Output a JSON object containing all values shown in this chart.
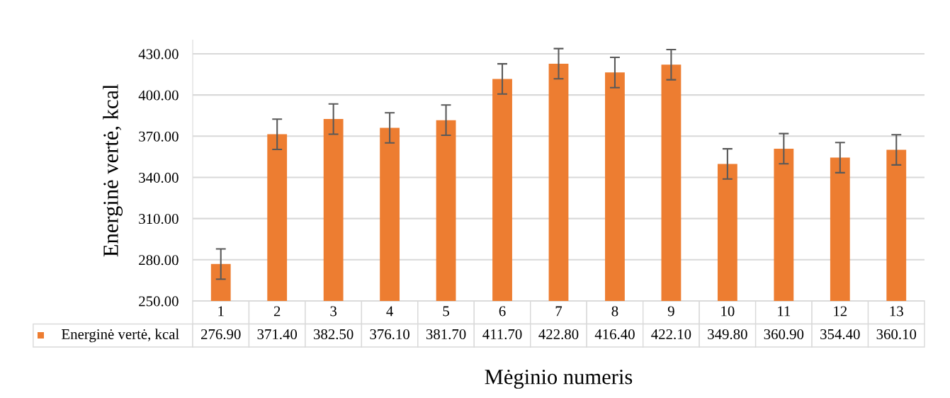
{
  "chart_data": {
    "type": "bar",
    "xlabel": "Mėginio numeris",
    "ylabel": "Energinė vertė, kcal",
    "categories": [
      "1",
      "2",
      "3",
      "4",
      "5",
      "6",
      "7",
      "8",
      "9",
      "10",
      "11",
      "12",
      "13"
    ],
    "series": [
      {
        "name": "Energinė vertė, kcal",
        "color": "#ed7d31",
        "values": [
          276.9,
          371.4,
          382.5,
          376.1,
          381.7,
          411.7,
          422.8,
          416.4,
          422.1,
          349.8,
          360.9,
          354.4,
          360.1
        ],
        "value_labels": [
          "276.90",
          "371.40",
          "382.50",
          "376.10",
          "381.70",
          "411.70",
          "422.80",
          "416.40",
          "422.10",
          "349.80",
          "360.90",
          "354.40",
          "360.10"
        ],
        "errors": [
          11,
          11,
          11,
          11,
          11,
          11,
          11,
          11,
          11,
          11,
          11,
          11,
          11
        ]
      }
    ],
    "ylim": [
      250,
      440
    ],
    "yticks": [
      {
        "value": 250,
        "label": "250.00"
      },
      {
        "value": 280,
        "label": "280.00"
      },
      {
        "value": 310,
        "label": "310.00"
      },
      {
        "value": 340,
        "label": "340.00"
      },
      {
        "value": 370,
        "label": "370.00"
      },
      {
        "value": 400,
        "label": "400.00"
      },
      {
        "value": 430,
        "label": "430.00"
      }
    ],
    "grid": "y",
    "legend": "bottom"
  }
}
